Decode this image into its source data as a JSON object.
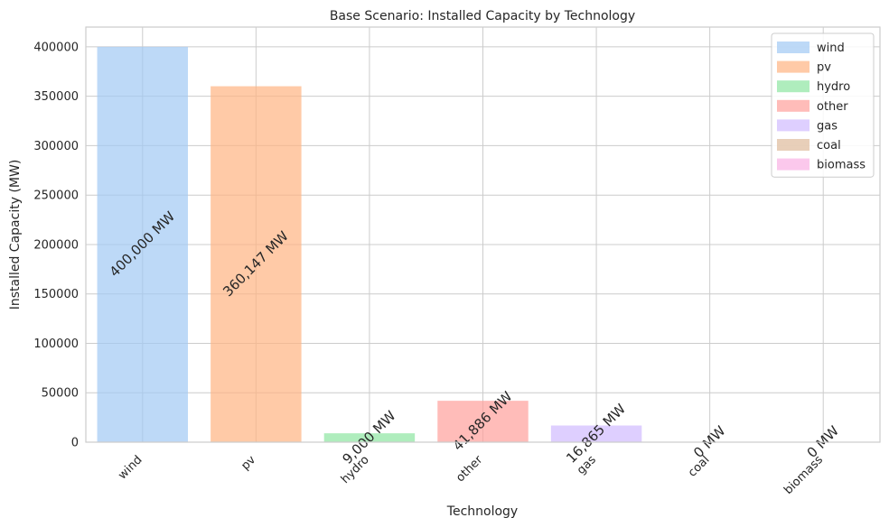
{
  "chart_data": {
    "type": "bar",
    "title": "Base Scenario: Installed Capacity by Technology",
    "xlabel": "Technology",
    "ylabel": "Installed Capacity (MW)",
    "categories": [
      "wind",
      "pv",
      "hydro",
      "other",
      "gas",
      "coal",
      "biomass"
    ],
    "values": [
      400000,
      360147,
      9000,
      41886,
      16865,
      0,
      0
    ],
    "data_labels": [
      "400,000 MW",
      "360,147 MW",
      "9,000 MW",
      "41,886 MW",
      "16,865 MW",
      "0 MW",
      "0 MW"
    ],
    "colors": [
      "#a1c9f4",
      "#ffb482",
      "#8de5a1",
      "#ff9f9b",
      "#d0bbff",
      "#debb9b",
      "#fab0e4"
    ],
    "ylim": [
      0,
      420000
    ],
    "yticks": [
      0,
      50000,
      100000,
      150000,
      200000,
      250000,
      300000,
      350000,
      400000
    ],
    "grid": true,
    "legend": {
      "placement": "top-right",
      "entries": [
        "wind",
        "pv",
        "hydro",
        "other",
        "gas",
        "coal",
        "biomass"
      ]
    }
  }
}
